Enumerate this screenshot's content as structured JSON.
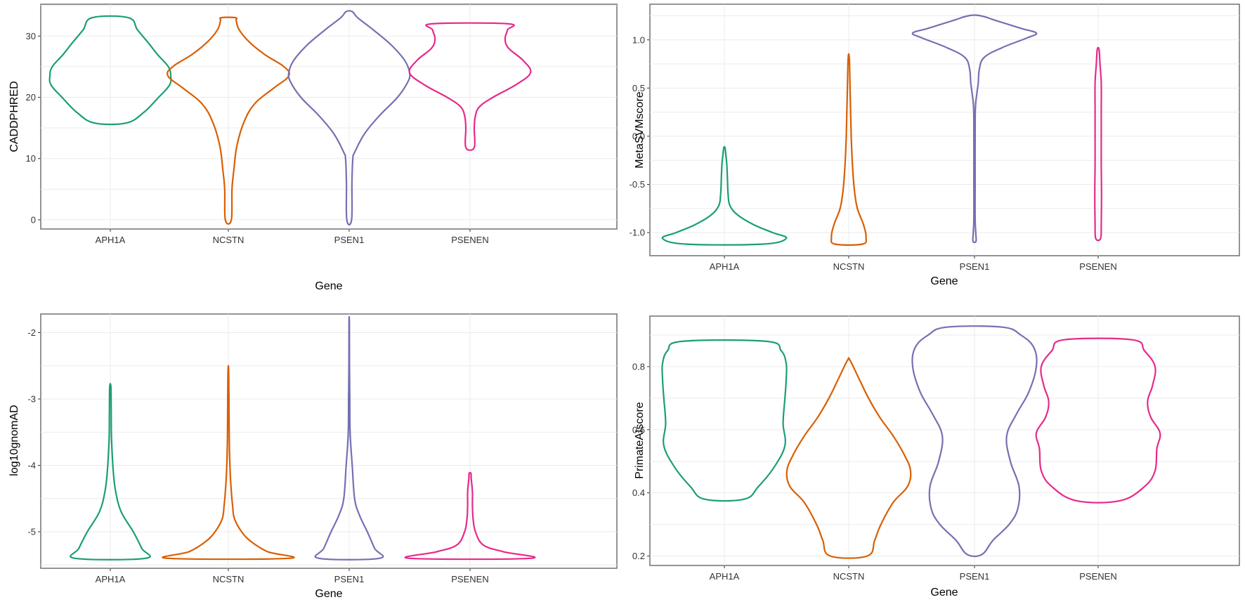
{
  "chart_data": [
    {
      "type": "violin",
      "xlabel": "Gene",
      "ylabel": "CADDPHRED",
      "categories": [
        "APH1A",
        "NCSTN",
        "PSEN1",
        "PSENEN"
      ],
      "yticks": [
        0,
        10,
        20,
        30
      ],
      "ylim": [
        -1.5,
        35.2
      ],
      "grid": true,
      "series": [
        {
          "category": "APH1A",
          "color": "#1b9e77",
          "min": 15.8,
          "max": 33,
          "profile": [
            [
              15.8,
              0.26
            ],
            [
              17.5,
              0.55
            ],
            [
              20,
              0.8
            ],
            [
              22,
              0.98
            ],
            [
              23.5,
              1.0
            ],
            [
              25,
              0.96
            ],
            [
              27,
              0.78
            ],
            [
              29,
              0.62
            ],
            [
              31,
              0.45
            ],
            [
              33,
              0.3
            ]
          ]
        },
        {
          "category": "NCSTN",
          "color": "#d95f02",
          "min": 0,
          "max": 33,
          "profile": [
            [
              0,
              0.05
            ],
            [
              5,
              0.06
            ],
            [
              8,
              0.09
            ],
            [
              12,
              0.14
            ],
            [
              16,
              0.26
            ],
            [
              19,
              0.44
            ],
            [
              21.5,
              0.75
            ],
            [
              23.5,
              1.0
            ],
            [
              25,
              0.92
            ],
            [
              27,
              0.6
            ],
            [
              29,
              0.35
            ],
            [
              31,
              0.18
            ],
            [
              32.5,
              0.13
            ],
            [
              33,
              0.12
            ]
          ]
        },
        {
          "category": "PSEN1",
          "color": "#7570b3",
          "min": 0,
          "max": 34,
          "profile": [
            [
              0,
              0.04
            ],
            [
              6,
              0.045
            ],
            [
              10,
              0.06
            ],
            [
              11,
              0.09
            ],
            [
              14,
              0.25
            ],
            [
              17,
              0.5
            ],
            [
              20,
              0.8
            ],
            [
              22.5,
              0.97
            ],
            [
              24,
              1.0
            ],
            [
              26,
              0.92
            ],
            [
              28.5,
              0.7
            ],
            [
              31,
              0.4
            ],
            [
              33,
              0.14
            ],
            [
              34,
              0.05
            ]
          ]
        },
        {
          "category": "PSENEN",
          "color": "#e7298a",
          "min": 11.8,
          "max": 32,
          "profile": [
            [
              11.8,
              0.07
            ],
            [
              15,
              0.07
            ],
            [
              17,
              0.09
            ],
            [
              18.5,
              0.16
            ],
            [
              20,
              0.38
            ],
            [
              22,
              0.75
            ],
            [
              24,
              1.0
            ],
            [
              26,
              0.88
            ],
            [
              28,
              0.64
            ],
            [
              29.5,
              0.58
            ],
            [
              31,
              0.62
            ],
            [
              32,
              0.63
            ]
          ]
        }
      ]
    },
    {
      "type": "violin",
      "xlabel": "Gene",
      "ylabel": "MetaSVMscore",
      "categories": [
        "APH1A",
        "NCSTN",
        "PSEN1",
        "PSENEN"
      ],
      "yticks": [
        -1.0,
        -0.5,
        0.0,
        0.5,
        1.0
      ],
      "ytick_labels": [
        "-1.0",
        "-0.5",
        "0.0",
        "0.5",
        "1.0"
      ],
      "ylim": [
        -1.24,
        1.37
      ],
      "grid": true,
      "series": [
        {
          "category": "APH1A",
          "color": "#1b9e77",
          "min": -1.12,
          "max": -0.12,
          "profile": [
            [
              -1.12,
              0.62
            ],
            [
              -1.06,
              1.0
            ],
            [
              -1.0,
              0.78
            ],
            [
              -0.92,
              0.48
            ],
            [
              -0.82,
              0.22
            ],
            [
              -0.72,
              0.09
            ],
            [
              -0.6,
              0.06
            ],
            [
              -0.45,
              0.05
            ],
            [
              -0.3,
              0.04
            ],
            [
              -0.2,
              0.025
            ],
            [
              -0.12,
              0.01
            ]
          ]
        },
        {
          "category": "NCSTN",
          "color": "#d95f02",
          "min": -1.12,
          "max": 0.8,
          "profile": [
            [
              -1.12,
              0.22
            ],
            [
              -1.05,
              0.28
            ],
            [
              -0.92,
              0.24
            ],
            [
              -0.75,
              0.14
            ],
            [
              -0.55,
              0.09
            ],
            [
              -0.3,
              0.06
            ],
            [
              0.0,
              0.04
            ],
            [
              0.4,
              0.025
            ],
            [
              0.8,
              0.01
            ]
          ]
        },
        {
          "category": "PSEN1",
          "color": "#7570b3",
          "min": -1.09,
          "max": 1.25,
          "profile": [
            [
              -1.09,
              0.025
            ],
            [
              -1.0,
              0.02
            ],
            [
              -0.85,
              0.01
            ],
            [
              -0.5,
              0.01
            ],
            [
              0.0,
              0.01
            ],
            [
              0.3,
              0.015
            ],
            [
              0.45,
              0.04
            ],
            [
              0.55,
              0.06
            ],
            [
              0.7,
              0.08
            ],
            [
              0.82,
              0.16
            ],
            [
              0.92,
              0.45
            ],
            [
              1.02,
              0.85
            ],
            [
              1.07,
              1.0
            ],
            [
              1.12,
              0.75
            ],
            [
              1.2,
              0.35
            ],
            [
              1.25,
              0.1
            ]
          ]
        },
        {
          "category": "PSENEN",
          "color": "#e7298a",
          "min": -1.06,
          "max": 0.9,
          "profile": [
            [
              -1.06,
              0.04
            ],
            [
              -0.9,
              0.05
            ],
            [
              -0.6,
              0.055
            ],
            [
              -0.3,
              0.05
            ],
            [
              0.0,
              0.05
            ],
            [
              0.3,
              0.05
            ],
            [
              0.55,
              0.05
            ],
            [
              0.75,
              0.03
            ],
            [
              0.9,
              0.015
            ]
          ]
        }
      ]
    },
    {
      "type": "violin",
      "xlabel": "Gene",
      "ylabel": "log10gnomAD",
      "categories": [
        "APH1A",
        "NCSTN",
        "PSEN1",
        "PSENEN"
      ],
      "yticks": [
        -5,
        -4,
        -3,
        -2
      ],
      "ylim": [
        -5.55,
        -1.72
      ],
      "grid": true,
      "series": [
        {
          "category": "APH1A",
          "color": "#1b9e77",
          "min": -5.4,
          "max": -2.82,
          "profile": [
            [
              -5.4,
              0.58
            ],
            [
              -5.25,
              0.52
            ],
            [
              -5.0,
              0.38
            ],
            [
              -4.7,
              0.18
            ],
            [
              -4.4,
              0.09
            ],
            [
              -4.1,
              0.05
            ],
            [
              -3.6,
              0.02
            ],
            [
              -3.2,
              0.015
            ],
            [
              -2.82,
              0.01
            ]
          ]
        },
        {
          "category": "NCSTN",
          "color": "#d95f02",
          "min": -5.4,
          "max": -2.56,
          "profile": [
            [
              -5.4,
              1.0
            ],
            [
              -5.3,
              0.65
            ],
            [
              -5.15,
              0.38
            ],
            [
              -5.0,
              0.22
            ],
            [
              -4.8,
              0.1
            ],
            [
              -4.6,
              0.07
            ],
            [
              -4.4,
              0.05
            ],
            [
              -4.1,
              0.03
            ],
            [
              -3.6,
              0.015
            ],
            [
              -3.0,
              0.01
            ],
            [
              -2.56,
              0.005
            ]
          ]
        },
        {
          "category": "PSEN1",
          "color": "#7570b3",
          "min": -5.4,
          "max": -1.85,
          "profile": [
            [
              -5.4,
              0.5
            ],
            [
              -5.25,
              0.42
            ],
            [
              -5.0,
              0.3
            ],
            [
              -4.75,
              0.17
            ],
            [
              -4.5,
              0.09
            ],
            [
              -4.0,
              0.05
            ],
            [
              -3.5,
              0.015
            ],
            [
              -3.0,
              0.01
            ],
            [
              -2.5,
              0.005
            ],
            [
              -1.85,
              0.003
            ]
          ]
        },
        {
          "category": "PSENEN",
          "color": "#e7298a",
          "min": -5.4,
          "max": -4.12,
          "profile": [
            [
              -5.4,
              1.0
            ],
            [
              -5.3,
              0.55
            ],
            [
              -5.2,
              0.22
            ],
            [
              -5.0,
              0.09
            ],
            [
              -4.8,
              0.05
            ],
            [
              -4.6,
              0.04
            ],
            [
              -4.4,
              0.04
            ],
            [
              -4.2,
              0.02
            ],
            [
              -4.12,
              0.015
            ]
          ]
        }
      ]
    },
    {
      "type": "violin",
      "xlabel": "Gene",
      "ylabel": "PrimateAIscore",
      "categories": [
        "APH1A",
        "NCSTN",
        "PSEN1",
        "PSENEN"
      ],
      "yticks": [
        0.2,
        0.4,
        0.6,
        0.8
      ],
      "ytick_labels": [
        "0.2",
        "0.4",
        "0.6",
        "0.8"
      ],
      "ylim": [
        0.17,
        0.96
      ],
      "grid": true,
      "series": [
        {
          "category": "APH1A",
          "color": "#1b9e77",
          "min": 0.38,
          "max": 0.88,
          "profile": [
            [
              0.38,
              0.32
            ],
            [
              0.42,
              0.55
            ],
            [
              0.48,
              0.8
            ],
            [
              0.55,
              0.98
            ],
            [
              0.62,
              0.95
            ],
            [
              0.7,
              0.98
            ],
            [
              0.76,
              1.0
            ],
            [
              0.81,
              1.0
            ],
            [
              0.85,
              0.92
            ],
            [
              0.88,
              0.68
            ]
          ]
        },
        {
          "category": "NCSTN",
          "color": "#d95f02",
          "min": 0.2,
          "max": 0.82,
          "profile": [
            [
              0.2,
              0.3
            ],
            [
              0.25,
              0.42
            ],
            [
              0.3,
              0.52
            ],
            [
              0.37,
              0.72
            ],
            [
              0.42,
              0.95
            ],
            [
              0.47,
              1.0
            ],
            [
              0.52,
              0.9
            ],
            [
              0.58,
              0.72
            ],
            [
              0.64,
              0.5
            ],
            [
              0.7,
              0.32
            ],
            [
              0.76,
              0.17
            ],
            [
              0.82,
              0.02
            ]
          ]
        },
        {
          "category": "PSEN1",
          "color": "#7570b3",
          "min": 0.205,
          "max": 0.925,
          "profile": [
            [
              0.205,
              0.12
            ],
            [
              0.25,
              0.3
            ],
            [
              0.3,
              0.56
            ],
            [
              0.35,
              0.7
            ],
            [
              0.42,
              0.72
            ],
            [
              0.5,
              0.58
            ],
            [
              0.58,
              0.52
            ],
            [
              0.65,
              0.68
            ],
            [
              0.72,
              0.88
            ],
            [
              0.8,
              1.0
            ],
            [
              0.86,
              0.96
            ],
            [
              0.9,
              0.75
            ],
            [
              0.925,
              0.45
            ]
          ]
        },
        {
          "category": "PSENEN",
          "color": "#e7298a",
          "min": 0.375,
          "max": 0.885,
          "profile": [
            [
              0.375,
              0.35
            ],
            [
              0.42,
              0.75
            ],
            [
              0.47,
              0.92
            ],
            [
              0.54,
              0.95
            ],
            [
              0.59,
              1.0
            ],
            [
              0.64,
              0.85
            ],
            [
              0.69,
              0.8
            ],
            [
              0.74,
              0.88
            ],
            [
              0.8,
              0.92
            ],
            [
              0.85,
              0.75
            ],
            [
              0.885,
              0.55
            ]
          ]
        }
      ]
    }
  ]
}
